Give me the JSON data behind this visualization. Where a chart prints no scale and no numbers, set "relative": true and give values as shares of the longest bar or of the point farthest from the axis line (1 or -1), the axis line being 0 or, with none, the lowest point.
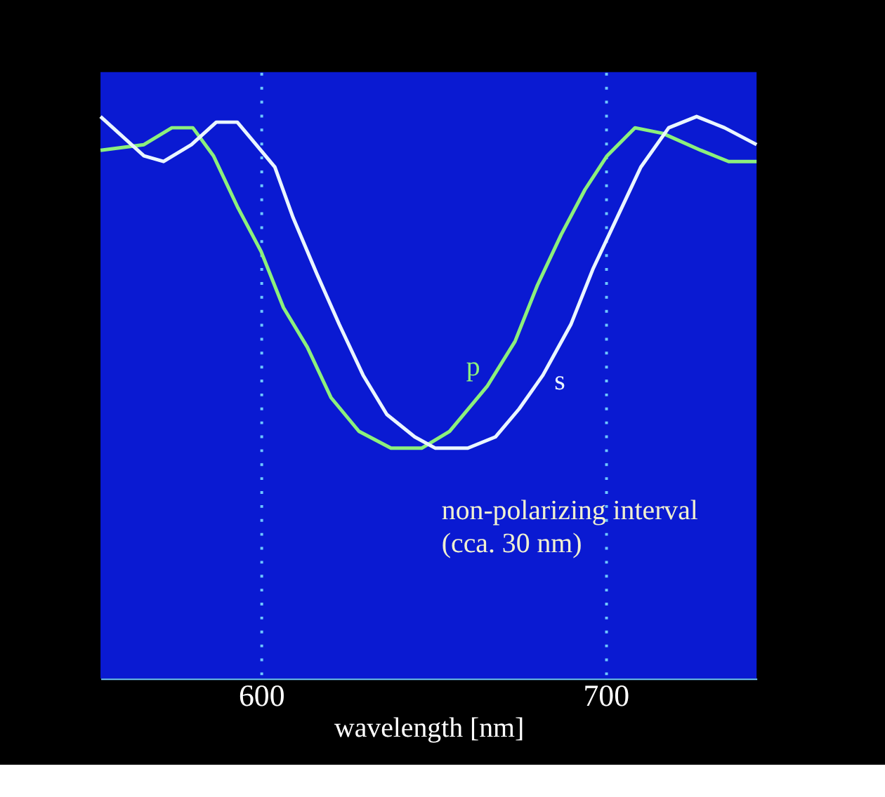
{
  "chart_data": {
    "type": "line",
    "relative": true,
    "xlabel": "wavelength [nm]",
    "xlim": [
      553.4,
      743.8
    ],
    "xticks": [
      600,
      700
    ],
    "grid": "x",
    "line_style": "solid",
    "marker": "none",
    "annotations": [
      "non-polarizing interval\n(cca. 30 nm)"
    ],
    "series": [
      {
        "name": "p",
        "color": "#8cf07c",
        "x": [
          553.4,
          566.0,
          574.1,
          580.2,
          586.2,
          593.1,
          600.0,
          606.5,
          613.4,
          620.3,
          628.4,
          637.7,
          646.6,
          654.7,
          665.6,
          673.7,
          680.2,
          687.1,
          694.0,
          700.4,
          708.5,
          716.6,
          727.6,
          735.7,
          743.8
        ],
        "values": [
          0.94,
          0.95,
          0.98,
          0.98,
          0.93,
          0.84,
          0.76,
          0.66,
          0.59,
          0.5,
          0.44,
          0.41,
          0.41,
          0.44,
          0.52,
          0.6,
          0.7,
          0.79,
          0.87,
          0.93,
          0.98,
          0.97,
          0.94,
          0.92,
          0.92
        ]
      },
      {
        "name": "s",
        "color": "#eaf6ff",
        "x": [
          553.4,
          566.0,
          571.7,
          579.8,
          587.0,
          593.1,
          597.2,
          604.0,
          609.3,
          616.2,
          622.7,
          629.6,
          636.5,
          644.6,
          650.6,
          660.0,
          668.0,
          674.9,
          681.8,
          689.9,
          696.4,
          703.3,
          710.2,
          718.3,
          726.4,
          734.5,
          743.8
        ],
        "values": [
          1.0,
          0.93,
          0.92,
          0.95,
          0.99,
          0.99,
          0.96,
          0.91,
          0.82,
          0.72,
          0.63,
          0.54,
          0.47,
          0.43,
          0.41,
          0.41,
          0.43,
          0.48,
          0.54,
          0.63,
          0.73,
          0.82,
          0.91,
          0.98,
          1.0,
          0.98,
          0.95
        ]
      }
    ]
  }
}
